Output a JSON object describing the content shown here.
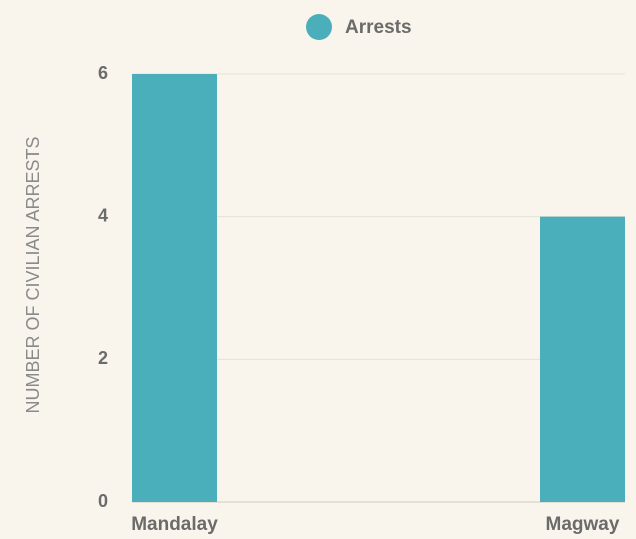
{
  "chart_data": {
    "type": "bar",
    "y_label": "NUMBER OF CIVILIAN ARRESTS",
    "categories": [
      "Mandalay",
      "Magway"
    ],
    "series": [
      {
        "name": "Arrests",
        "color": "#4aafbb",
        "values": [
          6,
          4
        ]
      }
    ],
    "ylim": [
      0,
      6
    ],
    "yticks": [
      0,
      2,
      4,
      6
    ],
    "grid": true,
    "legend": "top"
  }
}
